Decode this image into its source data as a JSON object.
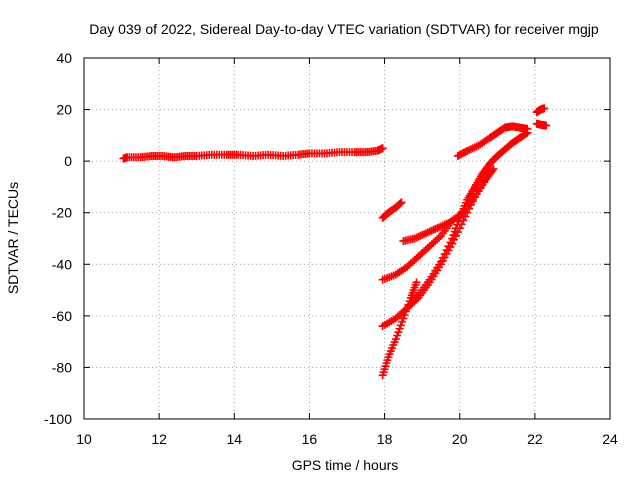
{
  "chart_data": {
    "type": "scatter",
    "title": "Day 039 of 2022, Sidereal Day-to-day VTEC variation (SDTVAR) for receiver mgjp",
    "xlabel": "GPS time / hours",
    "ylabel": "SDTVAR / TECUs",
    "xlim": [
      10,
      24
    ],
    "ylim": [
      -100,
      40
    ],
    "xticks": [
      10,
      12,
      14,
      16,
      18,
      20,
      22,
      24
    ],
    "yticks": [
      -100,
      -80,
      -60,
      -40,
      -20,
      0,
      20,
      40
    ],
    "grid": true,
    "legend": "none",
    "marker": "plus",
    "color": "#ff0000",
    "series": [
      {
        "points": [
          [
            11.05,
            1.0
          ],
          [
            11.15,
            1.5
          ],
          [
            11.5,
            1.5
          ],
          [
            11.8,
            2.0
          ],
          [
            12.1,
            2.0
          ],
          [
            12.4,
            1.5
          ],
          [
            12.7,
            2.0
          ],
          [
            13.0,
            2.0
          ],
          [
            13.4,
            2.5
          ],
          [
            13.8,
            2.5
          ],
          [
            14.1,
            2.5
          ],
          [
            14.5,
            2.0
          ],
          [
            14.9,
            2.5
          ],
          [
            15.3,
            2.0
          ],
          [
            15.7,
            2.5
          ],
          [
            16.0,
            3.0
          ],
          [
            16.4,
            3.0
          ],
          [
            16.8,
            3.5
          ],
          [
            17.2,
            3.5
          ],
          [
            17.5,
            3.5
          ],
          [
            17.8,
            4.0
          ],
          [
            17.95,
            5.0
          ]
        ]
      },
      {
        "points": [
          [
            17.95,
            -22.0
          ],
          [
            18.1,
            -20.0
          ],
          [
            18.3,
            -18.0
          ],
          [
            18.45,
            -16.0
          ]
        ]
      },
      {
        "points": [
          [
            18.5,
            -31.0
          ],
          [
            18.8,
            -30.0
          ],
          [
            19.1,
            -28.0
          ],
          [
            19.4,
            -26.0
          ],
          [
            19.7,
            -24.0
          ],
          [
            20.0,
            -21.0
          ],
          [
            20.3,
            -16.0
          ],
          [
            20.6,
            -9.0
          ],
          [
            20.8,
            -4.0
          ]
        ]
      },
      {
        "points": [
          [
            17.95,
            -46.0
          ],
          [
            18.3,
            -44.0
          ],
          [
            18.6,
            -41.0
          ],
          [
            18.9,
            -37.0
          ],
          [
            19.2,
            -33.0
          ],
          [
            19.5,
            -29.0
          ],
          [
            19.8,
            -23.0
          ]
        ]
      },
      {
        "points": [
          [
            17.95,
            -64.0
          ],
          [
            18.3,
            -61.0
          ],
          [
            18.6,
            -57.0
          ],
          [
            18.9,
            -52.0
          ],
          [
            19.2,
            -46.0
          ],
          [
            19.5,
            -39.0
          ],
          [
            19.8,
            -30.0
          ],
          [
            20.0,
            -22.0
          ],
          [
            20.2,
            -15.0
          ],
          [
            20.4,
            -10.0
          ],
          [
            20.6,
            -5.0
          ],
          [
            20.8,
            -1.0
          ],
          [
            21.0,
            2.0
          ],
          [
            21.2,
            4.5
          ],
          [
            21.4,
            7.0
          ],
          [
            21.6,
            9.0
          ],
          [
            21.8,
            11.0
          ]
        ]
      },
      {
        "points": [
          [
            17.95,
            -83.0
          ],
          [
            18.1,
            -76.0
          ],
          [
            18.3,
            -69.0
          ],
          [
            18.5,
            -61.0
          ],
          [
            18.7,
            -53.0
          ],
          [
            18.85,
            -47.0
          ]
        ]
      },
      {
        "points": [
          [
            18.6,
            -57.0
          ],
          [
            18.9,
            -53.0
          ],
          [
            19.2,
            -47.0
          ],
          [
            19.5,
            -40.0
          ],
          [
            19.8,
            -32.0
          ],
          [
            20.1,
            -23.0
          ],
          [
            20.4,
            -14.0
          ],
          [
            20.7,
            -7.0
          ],
          [
            20.9,
            -3.0
          ]
        ]
      },
      {
        "points": [
          [
            19.95,
            2.0
          ],
          [
            20.2,
            4.0
          ],
          [
            20.5,
            6.0
          ],
          [
            20.8,
            9.0
          ],
          [
            21.0,
            11.0
          ],
          [
            21.2,
            13.0
          ],
          [
            21.4,
            13.5
          ],
          [
            21.6,
            13.0
          ],
          [
            21.8,
            12.5
          ]
        ]
      },
      {
        "points": [
          [
            22.05,
            19.0
          ],
          [
            22.15,
            20.0
          ],
          [
            22.25,
            20.5
          ]
        ]
      },
      {
        "points": [
          [
            22.05,
            14.5
          ],
          [
            22.2,
            14.0
          ],
          [
            22.3,
            13.8
          ]
        ]
      }
    ]
  }
}
